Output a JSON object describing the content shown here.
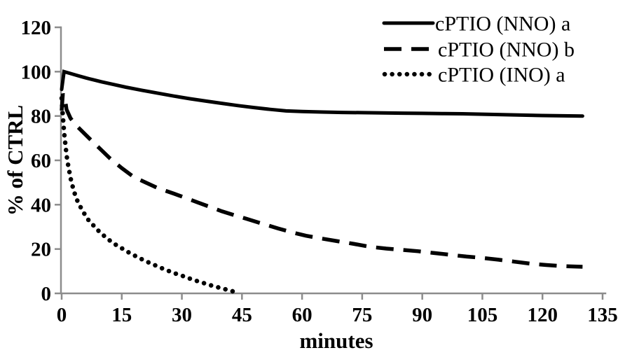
{
  "figure": {
    "background_color": "#ffffff",
    "axis_color": "#8c8c8c",
    "series_color": "#000000",
    "text_color": "#000000"
  },
  "chart_data": {
    "type": "line",
    "title": "",
    "xlabel": "minutes",
    "ylabel": "% of CTRL",
    "xlim": [
      0,
      135
    ],
    "ylim": [
      0,
      120
    ],
    "x_ticks": [
      0,
      15,
      30,
      45,
      60,
      75,
      90,
      105,
      120,
      135
    ],
    "y_ticks": [
      0,
      20,
      40,
      60,
      80,
      100,
      120
    ],
    "grid": false,
    "legend_position": "top-right",
    "series": [
      {
        "name": "cPTIO (NNO) a",
        "style": "solid",
        "points": [
          [
            0,
            92
          ],
          [
            0.6,
            100
          ],
          [
            2,
            99.3
          ],
          [
            4,
            98.2
          ],
          [
            6,
            97.2
          ],
          [
            8,
            96.3
          ],
          [
            10,
            95.4
          ],
          [
            13,
            94.2
          ],
          [
            16,
            93
          ],
          [
            20,
            91.6
          ],
          [
            24,
            90.3
          ],
          [
            28,
            89
          ],
          [
            32,
            87.8
          ],
          [
            36,
            86.7
          ],
          [
            40,
            85.7
          ],
          [
            44,
            84.7
          ],
          [
            48,
            83.8
          ],
          [
            52,
            83
          ],
          [
            56,
            82.3
          ],
          [
            60,
            82
          ],
          [
            65,
            81.8
          ],
          [
            70,
            81.6
          ],
          [
            75,
            81.5
          ],
          [
            80,
            81.4
          ],
          [
            85,
            81.3
          ],
          [
            90,
            81.2
          ],
          [
            95,
            81.1
          ],
          [
            100,
            81
          ],
          [
            105,
            80.8
          ],
          [
            110,
            80.6
          ],
          [
            115,
            80.4
          ],
          [
            120,
            80.2
          ],
          [
            125,
            80.1
          ],
          [
            130,
            80
          ]
        ]
      },
      {
        "name": "cPTIO (NNO) b",
        "style": "dashed",
        "points": [
          [
            0,
            82.5
          ],
          [
            0.3,
            90
          ],
          [
            0.8,
            88
          ],
          [
            1.2,
            83
          ],
          [
            2.2,
            79
          ],
          [
            3.5,
            76
          ],
          [
            6,
            71.5
          ],
          [
            8,
            68
          ],
          [
            10,
            64.5
          ],
          [
            12,
            61
          ],
          [
            15,
            56.5
          ],
          [
            18,
            52.5
          ],
          [
            21,
            50
          ],
          [
            24,
            47.5
          ],
          [
            28,
            45
          ],
          [
            31,
            43
          ],
          [
            34,
            41
          ],
          [
            37,
            39
          ],
          [
            40,
            37
          ],
          [
            43,
            35.3
          ],
          [
            46,
            33.7
          ],
          [
            50,
            31.5
          ],
          [
            54,
            29.3
          ],
          [
            58,
            27.3
          ],
          [
            61,
            26
          ],
          [
            65,
            24.7
          ],
          [
            69,
            23.5
          ],
          [
            73,
            22.3
          ],
          [
            77,
            21
          ],
          [
            81,
            20.2
          ],
          [
            85,
            19.6
          ],
          [
            89,
            19
          ],
          [
            93,
            18.2
          ],
          [
            97,
            17.4
          ],
          [
            101,
            16.6
          ],
          [
            105,
            16
          ],
          [
            109,
            15.2
          ],
          [
            113,
            14.3
          ],
          [
            117,
            13.4
          ],
          [
            121,
            12.8
          ],
          [
            125,
            12.3
          ],
          [
            130,
            12
          ]
        ]
      },
      {
        "name": "cPTIO (INO) a",
        "style": "dotted",
        "points": [
          [
            0,
            88
          ],
          [
            0.3,
            80
          ],
          [
            0.6,
            73
          ],
          [
            1,
            66
          ],
          [
            1.4,
            60
          ],
          [
            1.9,
            55
          ],
          [
            2.4,
            50.5
          ],
          [
            3,
            46.5
          ],
          [
            3.6,
            43
          ],
          [
            4.3,
            40.3
          ],
          [
            5,
            38
          ],
          [
            5.8,
            35.5
          ],
          [
            6.6,
            33.3
          ],
          [
            7.6,
            31.3
          ],
          [
            8.5,
            29.5
          ],
          [
            9.3,
            28
          ],
          [
            10.4,
            26.2
          ],
          [
            11.7,
            24.3
          ],
          [
            13,
            22.5
          ],
          [
            14.6,
            20.8
          ],
          [
            16,
            19.2
          ],
          [
            17.5,
            17.7
          ],
          [
            19,
            16.3
          ],
          [
            21,
            14.5
          ],
          [
            22.7,
            13.2
          ],
          [
            24.5,
            11.7
          ],
          [
            26.3,
            10.4
          ],
          [
            28,
            9.2
          ],
          [
            30,
            8
          ],
          [
            32.7,
            6.2
          ],
          [
            35,
            4.9
          ],
          [
            37.3,
            3.6
          ],
          [
            39.5,
            2.5
          ],
          [
            42,
            1.3
          ],
          [
            44,
            0.3
          ]
        ]
      }
    ]
  }
}
